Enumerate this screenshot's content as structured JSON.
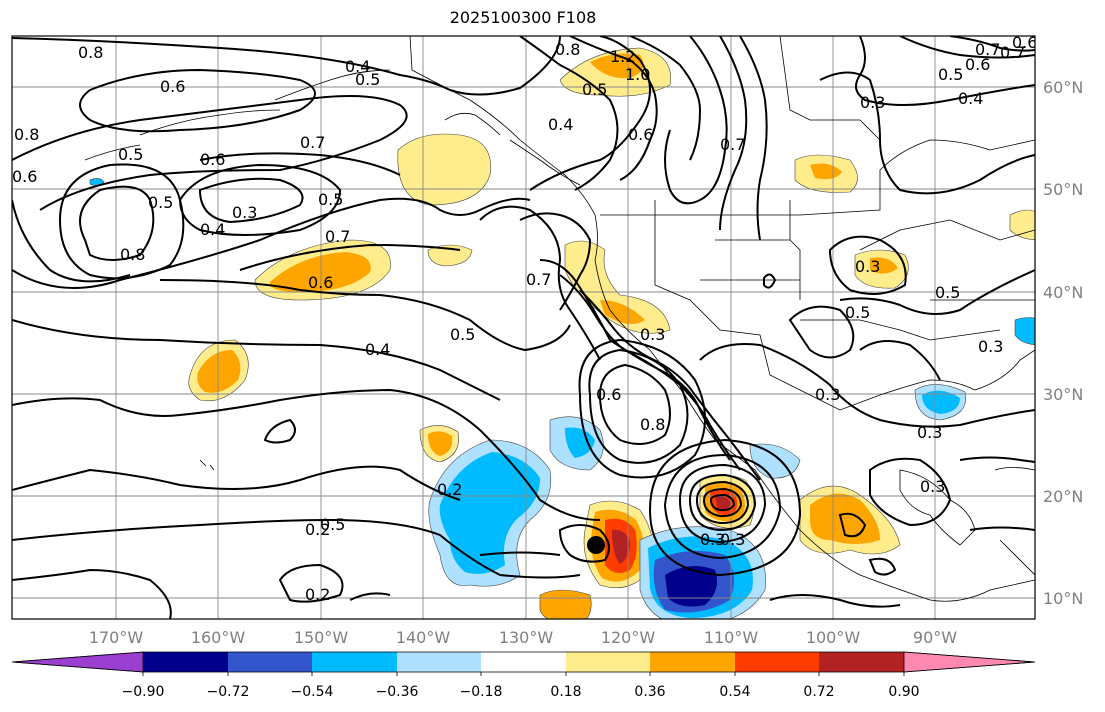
{
  "title": "2025100300 F108",
  "lon_labels": [
    "170°W",
    "160°W",
    "150°W",
    "140°W",
    "130°W",
    "120°W",
    "110°W",
    "100°W",
    "90°W"
  ],
  "lat_labels": [
    "60°N",
    "50°N",
    "40°N",
    "30°N",
    "20°N",
    "10°N"
  ],
  "colorbar": {
    "colors": [
      "#9a3fd0",
      "#00008c",
      "#3355cc",
      "#00bbff",
      "#aee0ff",
      "#ffffff",
      "#ffec8c",
      "#ffa500",
      "#ff3c00",
      "#b22222",
      "#ff88b0"
    ],
    "tick_labels": [
      "−0.90",
      "−0.72",
      "−0.54",
      "−0.36",
      "−0.18",
      "0.18",
      "0.36",
      "0.54",
      "0.72",
      "0.90"
    ]
  },
  "contour_labels": [
    "0.8",
    "0.4",
    "0.5",
    "0.6",
    "0.7",
    "0.5",
    "0.6",
    "0.3",
    "0.5",
    "0.7",
    "0.8",
    "0.4",
    "0.6",
    "0.5",
    "0.4",
    "0.5",
    "0.6",
    "0.7",
    "0.8",
    "0.3",
    "0.3",
    "0.5",
    "0.2",
    "0.2",
    "0.2",
    "0.8",
    "0.6",
    "0.5",
    "1.2",
    "1.0",
    "0.5",
    "0.4",
    "0.6",
    "0.7",
    "0.8",
    "0.7",
    "0.6",
    "0.5",
    "0.4",
    "0.3",
    "0.3",
    "0.3",
    "0.5",
    "0.3",
    "0.3",
    "0.3",
    "0.3",
    "0.7",
    "0.6"
  ]
}
